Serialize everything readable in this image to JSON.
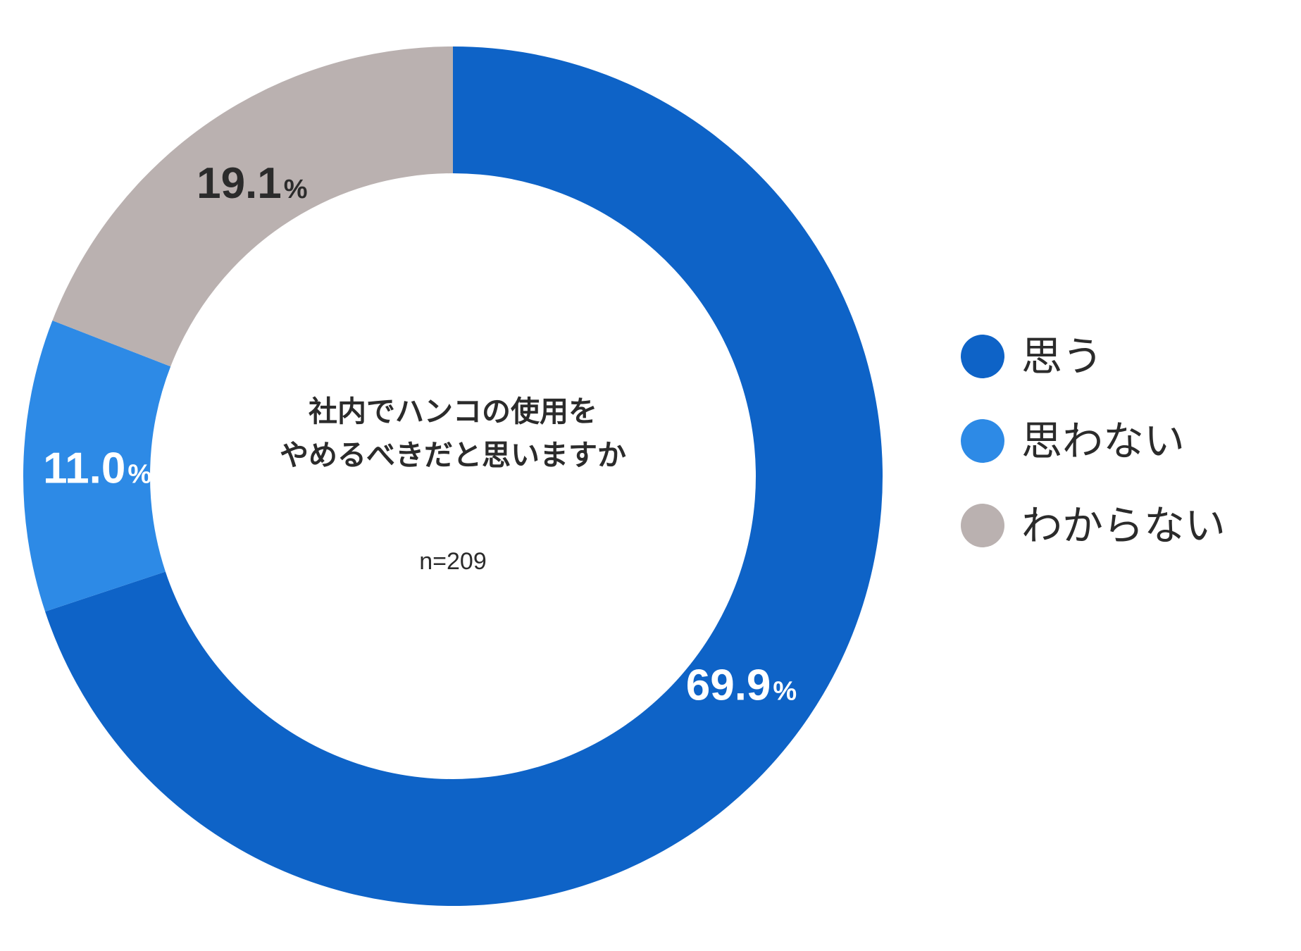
{
  "chart_data": {
    "type": "pie",
    "variant": "donut",
    "center_title_lines": [
      "社内でハンコの使用を",
      "やめるべきだと思いますか"
    ],
    "center_note": "n=209",
    "categories": [
      "思う",
      "思わない",
      "わからない"
    ],
    "values": [
      69.9,
      11.0,
      19.1
    ],
    "value_labels": [
      "69.9",
      "11.0",
      "19.1"
    ],
    "unit": "%",
    "colors": [
      "#0e63c7",
      "#2d8ae6",
      "#bab1b0"
    ],
    "label_colors": [
      "#ffffff",
      "#ffffff",
      "#2b2b2b"
    ],
    "start_angle": "12 o'clock",
    "direction": "clockwise",
    "legend_position": "right"
  }
}
